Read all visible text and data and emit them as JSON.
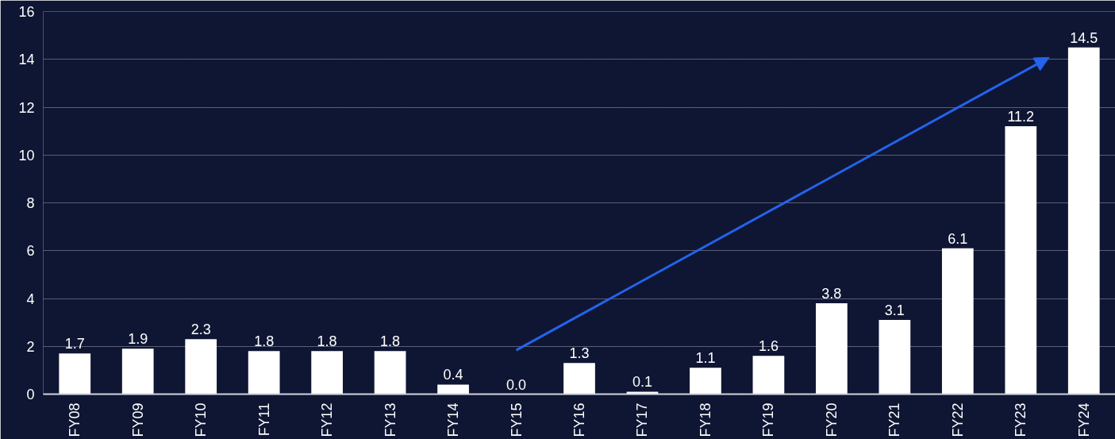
{
  "chart_data": {
    "type": "bar",
    "categories": [
      "FY08",
      "FY09",
      "FY10",
      "FY11",
      "FY12",
      "FY13",
      "FY14",
      "FY15",
      "FY16",
      "FY17",
      "FY18",
      "FY19",
      "FY20",
      "FY21",
      "FY22",
      "FY23",
      "FY24"
    ],
    "values": [
      1.7,
      1.9,
      2.3,
      1.8,
      1.8,
      1.8,
      0.4,
      0.0,
      1.3,
      0.1,
      1.1,
      1.6,
      3.8,
      3.1,
      6.1,
      11.2,
      14.5
    ],
    "value_labels": [
      "1.7",
      "1.9",
      "2.3",
      "1.8",
      "1.8",
      "1.8",
      "0.4",
      "0.0",
      "1.3",
      "0.1",
      "1.1",
      "1.6",
      "3.8",
      "3.1",
      "6.1",
      "11.2",
      "14.5"
    ],
    "color": "#ffffff",
    "ylim": [
      0,
      16
    ],
    "yticks": [
      0,
      2,
      4,
      6,
      8,
      10,
      12,
      14,
      16
    ],
    "grid": "y"
  }
}
